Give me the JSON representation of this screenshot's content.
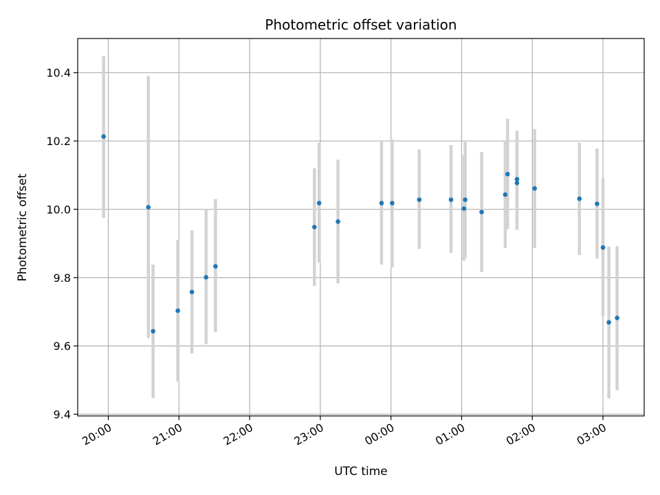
{
  "chart_data": {
    "type": "scatter",
    "title": "Photometric offset variation",
    "xlabel": "UTC time",
    "ylabel": "Photometric offset",
    "x_unit": "UTC time of night (20:00 to 03:00)",
    "x_tick_labels": [
      "20:00",
      "21:00",
      "22:00",
      "23:00",
      "00:00",
      "01:00",
      "02:00",
      "03:00"
    ],
    "y_ticks": [
      9.4,
      9.6,
      9.8,
      10.0,
      10.2,
      10.4
    ],
    "y_tick_labels": [
      "9.4",
      "9.6",
      "9.8",
      "10.0",
      "10.2",
      "10.4"
    ],
    "xlim": [
      "19:34",
      "03:35"
    ],
    "ylim": [
      9.395,
      10.5
    ],
    "grid": true,
    "colors": {
      "marker": "#1f77b4",
      "errorbar": "#d3d3d3",
      "grid": "#b0b0b0"
    },
    "points": [
      {
        "x": "19:56",
        "y": 10.213,
        "yerr_low": 9.975,
        "yerr_high": 10.448
      },
      {
        "x": "20:34",
        "y": 10.006,
        "yerr_low": 9.623,
        "yerr_high": 10.39
      },
      {
        "x": "20:38",
        "y": 9.643,
        "yerr_low": 9.447,
        "yerr_high": 9.838
      },
      {
        "x": "20:59",
        "y": 9.703,
        "yerr_low": 9.496,
        "yerr_high": 9.91
      },
      {
        "x": "21:11",
        "y": 9.758,
        "yerr_low": 9.578,
        "yerr_high": 9.938
      },
      {
        "x": "21:23",
        "y": 9.801,
        "yerr_low": 9.605,
        "yerr_high": 10.0
      },
      {
        "x": "21:31",
        "y": 9.833,
        "yerr_low": 9.64,
        "yerr_high": 10.03
      },
      {
        "x": "22:55",
        "y": 9.948,
        "yerr_low": 9.776,
        "yerr_high": 10.12
      },
      {
        "x": "22:59",
        "y": 10.018,
        "yerr_low": 9.844,
        "yerr_high": 10.195
      },
      {
        "x": "23:15",
        "y": 9.964,
        "yerr_low": 9.783,
        "yerr_high": 10.145
      },
      {
        "x": "23:52",
        "y": 10.018,
        "yerr_low": 9.838,
        "yerr_high": 10.2
      },
      {
        "x": "00:01",
        "y": 10.018,
        "yerr_low": 9.83,
        "yerr_high": 10.205
      },
      {
        "x": "00:24",
        "y": 10.028,
        "yerr_low": 9.884,
        "yerr_high": 10.175
      },
      {
        "x": "00:51",
        "y": 10.028,
        "yerr_low": 9.872,
        "yerr_high": 10.188
      },
      {
        "x": "01:02",
        "y": 10.002,
        "yerr_low": 9.85,
        "yerr_high": 10.158
      },
      {
        "x": "01:03",
        "y": 10.028,
        "yerr_low": 9.858,
        "yerr_high": 10.198
      },
      {
        "x": "01:17",
        "y": 9.992,
        "yerr_low": 9.816,
        "yerr_high": 10.168
      },
      {
        "x": "01:37",
        "y": 10.043,
        "yerr_low": 9.887,
        "yerr_high": 10.198
      },
      {
        "x": "01:39",
        "y": 10.103,
        "yerr_low": 9.942,
        "yerr_high": 10.265
      },
      {
        "x": "01:47",
        "y": 10.088,
        "yerr_low": 9.94,
        "yerr_high": 10.23
      },
      {
        "x": "01:47",
        "y": 10.077,
        "yerr_low": 9.942,
        "yerr_high": 10.21
      },
      {
        "x": "02:02",
        "y": 10.061,
        "yerr_low": 9.887,
        "yerr_high": 10.235
      },
      {
        "x": "02:40",
        "y": 10.031,
        "yerr_low": 9.866,
        "yerr_high": 10.195
      },
      {
        "x": "02:55",
        "y": 10.016,
        "yerr_low": 9.856,
        "yerr_high": 10.178
      },
      {
        "x": "03:00",
        "y": 9.888,
        "yerr_low": 9.686,
        "yerr_high": 10.09
      },
      {
        "x": "03:05",
        "y": 9.669,
        "yerr_low": 9.446,
        "yerr_high": 9.891
      },
      {
        "x": "03:12",
        "y": 9.682,
        "yerr_low": 9.47,
        "yerr_high": 9.892
      }
    ]
  }
}
